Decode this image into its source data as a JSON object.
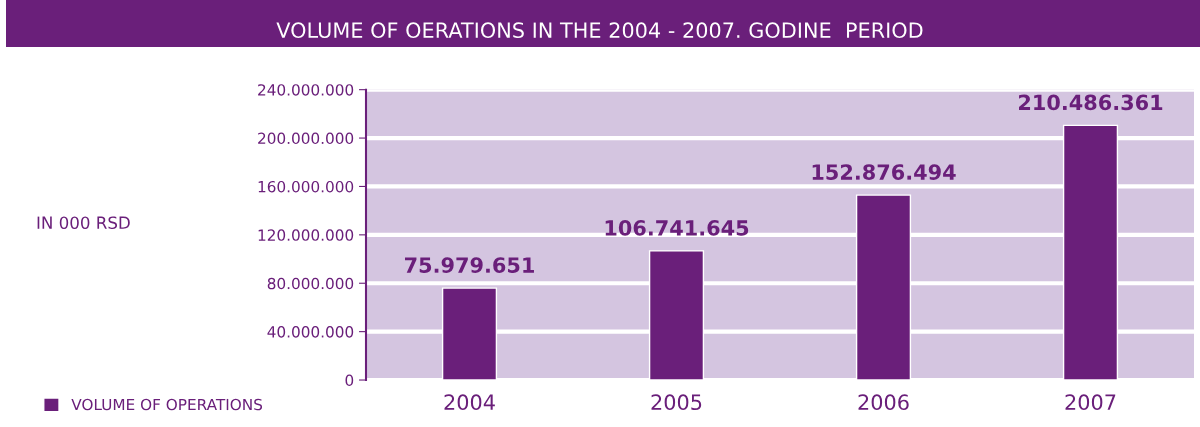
{
  "chart_data": {
    "type": "bar",
    "title": "VOLUME OF OERATIONS IN THE 2004 - 2007. GODINE  PERIOD",
    "annotations": [
      "IN 000 RSD"
    ],
    "categories": [
      "2004",
      "2005",
      "2006",
      "2007"
    ],
    "series": [
      {
        "name": "VOLUME OF OPERATIONS",
        "color": "#6a1f7a",
        "values": [
          75979651,
          106741645,
          152876494,
          210486361
        ],
        "value_labels": [
          "75.979.651",
          "106.741.645",
          "152.876.494",
          "210.486.361"
        ]
      }
    ],
    "ylim": [
      0,
      240000000
    ],
    "yticks": [
      {
        "value": 0,
        "label": "0"
      },
      {
        "value": 40000000,
        "label": "40.000.000"
      },
      {
        "value": 80000000,
        "label": "80.000.000"
      },
      {
        "value": 120000000,
        "label": "120.000.000"
      },
      {
        "value": 160000000,
        "label": "160.000.000"
      },
      {
        "value": 200000000,
        "label": "200.000.000"
      },
      {
        "value": 240000000,
        "label": "240.000.000"
      }
    ],
    "grid": "y",
    "legend": "bottom left"
  }
}
